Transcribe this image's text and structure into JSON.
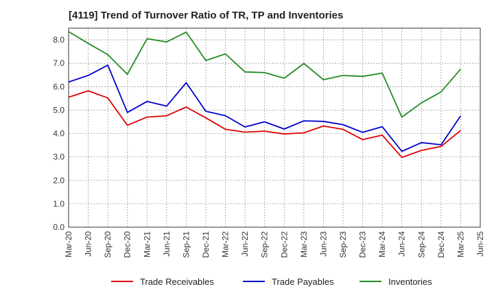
{
  "chart_data": {
    "type": "line",
    "title": "[4119]  Trend of Turnover Ratio of TR, TP and Inventories",
    "xlabel": "",
    "ylabel": "",
    "ylim": [
      0,
      8.5
    ],
    "y_ticks": [
      "0.0",
      "1.0",
      "2.0",
      "3.0",
      "4.0",
      "5.0",
      "6.0",
      "7.0",
      "8.0"
    ],
    "x_tick_labels": [
      "Mar-20",
      "Jun-20",
      "Sep-20",
      "Dec-20",
      "Mar-21",
      "Jun-21",
      "Sep-21",
      "Dec-21",
      "Mar-22",
      "Jun-22",
      "Sep-22",
      "Dec-22",
      "Mar-23",
      "Jun-23",
      "Sep-23",
      "Dec-23",
      "Mar-24",
      "Jun-24",
      "Sep-24",
      "Dec-24",
      "Mar-25",
      "Jun-25"
    ],
    "grid": true,
    "legend_position": "bottom",
    "categories": [
      "Mar-20",
      "Jun-20",
      "Sep-20",
      "Dec-20",
      "Mar-21",
      "Jun-21",
      "Sep-21",
      "Dec-21",
      "Mar-22",
      "Jun-22",
      "Sep-22",
      "Dec-22",
      "Mar-23",
      "Jun-23",
      "Sep-23",
      "Dec-23",
      "Mar-24",
      "Jun-24",
      "Sep-24",
      "Dec-24",
      "Mar-25"
    ],
    "series": [
      {
        "name": "Trade Receivables",
        "color": "#e00000",
        "values": [
          5.55,
          5.82,
          5.52,
          4.35,
          4.7,
          4.76,
          5.13,
          4.67,
          4.18,
          4.06,
          4.1,
          3.98,
          4.03,
          4.32,
          4.18,
          3.74,
          3.93,
          2.98,
          3.28,
          3.45,
          4.13
        ]
      },
      {
        "name": "Trade Payables",
        "color": "#0000cc",
        "values": [
          6.2,
          6.48,
          6.92,
          4.9,
          5.37,
          5.17,
          6.17,
          4.95,
          4.76,
          4.28,
          4.5,
          4.19,
          4.54,
          4.52,
          4.38,
          4.05,
          4.29,
          3.24,
          3.61,
          3.52,
          4.75
        ]
      },
      {
        "name": "Inventories",
        "color": "#228b22",
        "values": [
          8.35,
          7.85,
          7.37,
          6.53,
          8.05,
          7.91,
          8.33,
          7.12,
          7.4,
          6.63,
          6.6,
          6.36,
          6.99,
          6.3,
          6.48,
          6.44,
          6.58,
          4.7,
          5.31,
          5.78,
          6.75
        ]
      }
    ]
  }
}
